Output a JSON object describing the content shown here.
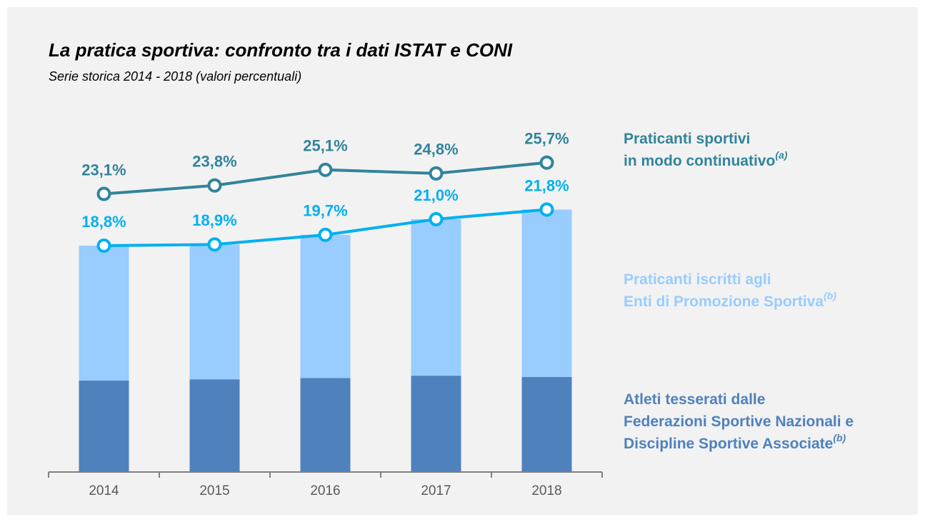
{
  "chart_data": {
    "type": "combo",
    "title": "La pratica sportiva: confronto tra i dati ISTAT e CONI",
    "subtitle": "Serie storica 2014 - 2018 (valori percentuali)",
    "categories": [
      "2014",
      "2015",
      "2016",
      "2017",
      "2018"
    ],
    "ylim": [
      0,
      28
    ],
    "series": [
      {
        "type": "bar",
        "name_lines": [
          "Atleti tesserati dalle",
          "Federazioni Sportive Nazionali e",
          "Discipline Sportive Associate"
        ],
        "name_note": "(b)",
        "color": "#4f81bd",
        "values": [
          7.6,
          7.7,
          7.8,
          8.0,
          7.9
        ]
      },
      {
        "type": "bar",
        "name_lines": [
          "Praticanti  iscritti agli",
          "Enti di Promozione Sportiva"
        ],
        "name_note": "(b)",
        "color": "#99ccff",
        "values": [
          11.2,
          11.2,
          11.9,
          13.0,
          13.9
        ]
      },
      {
        "type": "line",
        "name_lines": [
          "Praticanti sportivi",
          "in modo continuativo"
        ],
        "name_note": "(a)",
        "color": "#00b0f0",
        "values": [
          18.8,
          18.9,
          19.7,
          21.0,
          21.8
        ],
        "value_labels": [
          "18,8%",
          "18,9%",
          "19,7%",
          "21,0%",
          "21,8%"
        ]
      },
      {
        "type": "line",
        "name_lines": [],
        "color": "#31849b",
        "values": [
          23.1,
          23.8,
          25.1,
          24.8,
          25.7
        ],
        "value_labels": [
          "23,1%",
          "23,8%",
          "25,1%",
          "24,8%",
          "25,7%"
        ]
      }
    ]
  }
}
